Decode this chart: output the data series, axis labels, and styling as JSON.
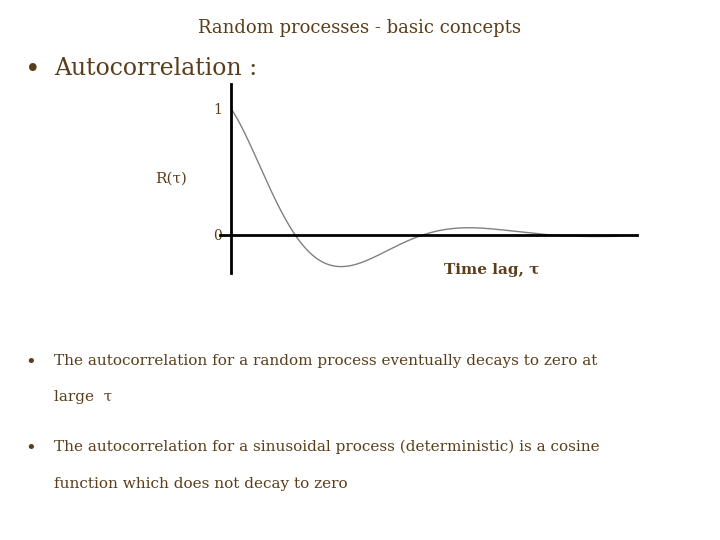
{
  "title": "Random processes - basic concepts",
  "title_color": "#5a3e1b",
  "title_fontsize": 13,
  "bullet1_text": "Autocorrelation :",
  "bullet1_fontsize": 17,
  "ylabel_text": "R(τ)",
  "xlabel_text": "Time lag, τ",
  "ytick_1_label": "1",
  "ytick_0_label": "0",
  "body_text_color": "#5a3e1b",
  "curve_color": "#808080",
  "axis_color": "#000000",
  "background_color": "#ffffff",
  "bullet2_line1": "The autocorrelation for a random process eventually decays to zero at",
  "bullet2_line2": "large  τ",
  "bullet3_line1": "The autocorrelation for a sinusoidal process (deterministic) is a cosine",
  "bullet3_line2": "function which does not decay to zero",
  "text_fontsize": 11
}
